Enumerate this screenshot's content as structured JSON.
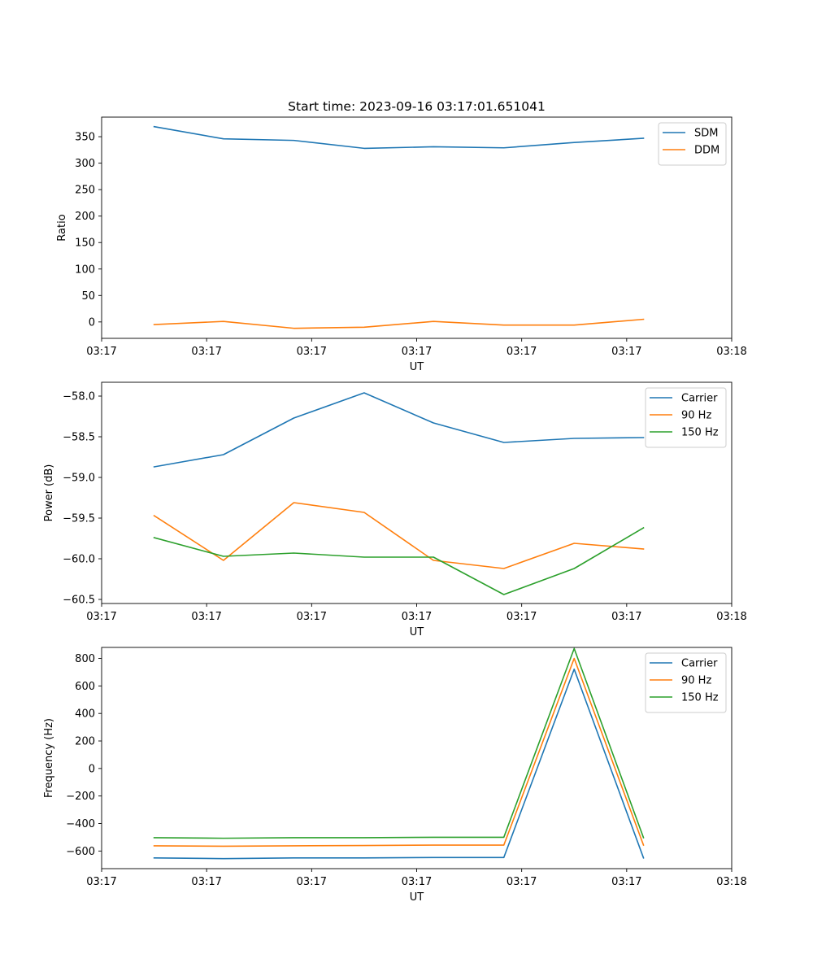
{
  "title": "Start time: 2023-09-16 03:17:01.651041",
  "colors": {
    "blue": "#1f77b4",
    "orange": "#ff7f0e",
    "green": "#2ca02c"
  },
  "x_tick_labels": [
    "03:17",
    "03:17",
    "03:17",
    "03:17",
    "03:17",
    "03:17",
    "03:18"
  ],
  "chart_data": [
    {
      "type": "line",
      "xlabel": "UT",
      "ylabel": "Ratio",
      "legend_position": "top-right",
      "xlim": [
        0,
        6
      ],
      "x": [
        0.5,
        1.16,
        1.83,
        2.5,
        3.16,
        3.83,
        4.5,
        5.16
      ],
      "ylim": [
        -31,
        387
      ],
      "yticks": [
        0,
        50,
        100,
        150,
        200,
        250,
        300,
        350
      ],
      "ytick_labels": [
        "0",
        "50",
        "100",
        "150",
        "200",
        "250",
        "300",
        "350"
      ],
      "series": [
        {
          "name": "SDM",
          "color": "blue",
          "values": [
            369,
            346,
            343,
            328,
            331,
            329,
            339,
            347
          ]
        },
        {
          "name": "DDM",
          "color": "orange",
          "values": [
            -5,
            1,
            -12,
            -10,
            1,
            -6,
            -6,
            5
          ]
        }
      ]
    },
    {
      "type": "line",
      "xlabel": "UT",
      "ylabel": "Power (dB)",
      "legend_position": "top-right",
      "xlim": [
        0,
        6
      ],
      "x": [
        0.5,
        1.16,
        1.83,
        2.5,
        3.16,
        3.83,
        4.5,
        5.16
      ],
      "ylim": [
        -60.55,
        -57.83
      ],
      "yticks": [
        -58.0,
        -58.5,
        -59.0,
        -59.5,
        -60.0,
        -60.5
      ],
      "ytick_labels": [
        "−58.0",
        "−58.5",
        "−59.0",
        "−59.5",
        "−60.0",
        "−60.5"
      ],
      "series": [
        {
          "name": "Carrier",
          "color": "blue",
          "values": [
            -58.87,
            -58.72,
            -58.27,
            -57.96,
            -58.33,
            -58.57,
            -58.52,
            -58.51
          ]
        },
        {
          "name": "90 Hz",
          "color": "orange",
          "values": [
            -59.47,
            -60.02,
            -59.31,
            -59.43,
            -60.02,
            -60.12,
            -59.81,
            -59.88
          ]
        },
        {
          "name": "150 Hz",
          "color": "green",
          "values": [
            -59.74,
            -59.97,
            -59.93,
            -59.98,
            -59.98,
            -60.44,
            -60.12,
            -59.62
          ]
        }
      ]
    },
    {
      "type": "line",
      "xlabel": "UT",
      "ylabel": "Frequency (Hz)",
      "legend_position": "top-right",
      "xlim": [
        0,
        6
      ],
      "x": [
        0.5,
        1.16,
        1.83,
        2.5,
        3.16,
        3.83,
        4.5,
        5.16
      ],
      "ylim": [
        -728,
        880
      ],
      "yticks": [
        -600,
        -400,
        -200,
        0,
        200,
        400,
        600,
        800
      ],
      "ytick_labels": [
        "−600",
        "−400",
        "−200",
        "0",
        "200",
        "400",
        "600",
        "800"
      ],
      "series": [
        {
          "name": "Carrier",
          "color": "blue",
          "values": [
            -650,
            -655,
            -650,
            -650,
            -647,
            -647,
            722,
            -650
          ]
        },
        {
          "name": "90 Hz",
          "color": "orange",
          "values": [
            -562,
            -565,
            -562,
            -560,
            -557,
            -557,
            800,
            -557
          ]
        },
        {
          "name": "150 Hz",
          "color": "green",
          "values": [
            -503,
            -507,
            -503,
            -503,
            -500,
            -500,
            872,
            -503
          ]
        }
      ]
    }
  ]
}
